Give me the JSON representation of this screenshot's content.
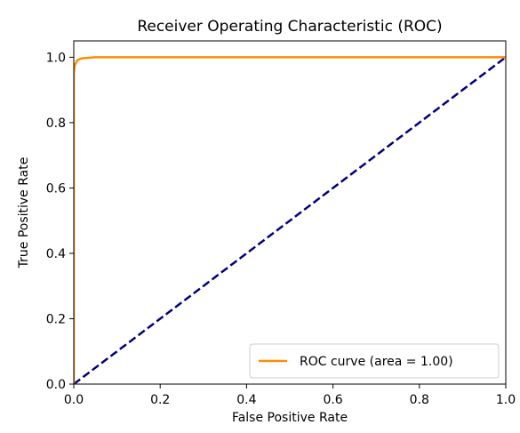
{
  "chart_data": {
    "type": "line",
    "title": "Receiver Operating Characteristic (ROC)",
    "xlabel": "False Positive Rate",
    "ylabel": "True Positive Rate",
    "xlim": [
      0.0,
      1.0
    ],
    "ylim": [
      0.0,
      1.05
    ],
    "xticks": [
      0.0,
      0.2,
      0.4,
      0.6,
      0.8,
      1.0
    ],
    "yticks": [
      0.0,
      0.2,
      0.4,
      0.6,
      0.8,
      1.0
    ],
    "xtick_labels": [
      "0.0",
      "0.2",
      "0.4",
      "0.6",
      "0.8",
      "1.0"
    ],
    "ytick_labels": [
      "0.0",
      "0.2",
      "0.4",
      "0.6",
      "0.8",
      "1.0"
    ],
    "legend_position": "lower-right",
    "series": [
      {
        "name": "ROC curve (area = 1.00)",
        "color": "#ff8c00",
        "style": "solid",
        "x": [
          0.0,
          0.0,
          0.002,
          0.004,
          0.006,
          0.008,
          0.01,
          0.015,
          0.02,
          0.03,
          0.05,
          0.1,
          0.5,
          1.0
        ],
        "y": [
          0.0,
          0.95,
          0.975,
          0.98,
          0.985,
          0.99,
          0.992,
          0.995,
          0.997,
          0.998,
          1.0,
          1.0,
          1.0,
          1.0
        ]
      },
      {
        "color": "#000080",
        "style": "dashed",
        "x": [
          0.0,
          1.0
        ],
        "y": [
          0.0,
          1.0
        ]
      }
    ]
  }
}
